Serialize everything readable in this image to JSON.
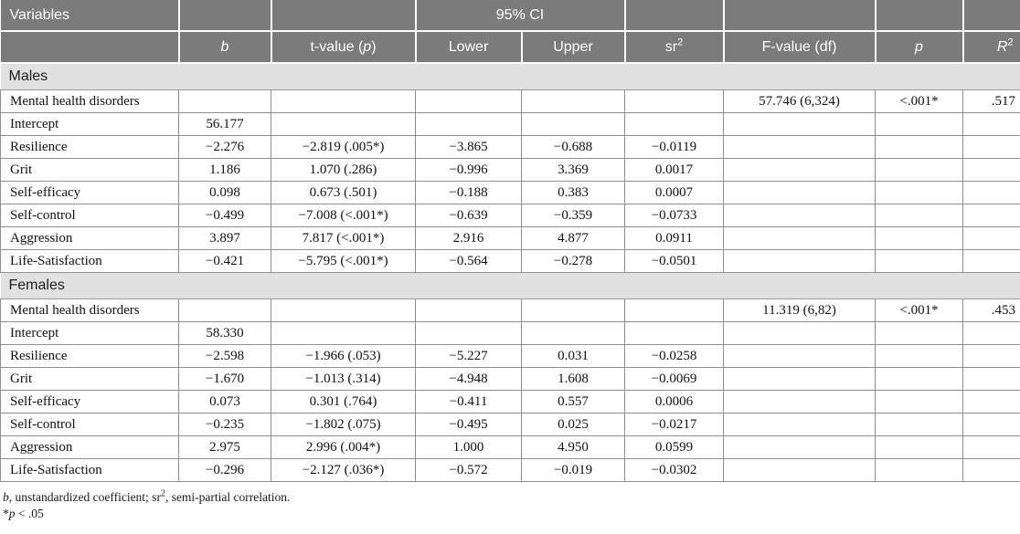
{
  "table": {
    "header": {
      "variables": "Variables",
      "ci": "95% CI",
      "b": "b",
      "t_prefix": "t-value (",
      "t_p": "p",
      "t_suffix": ")",
      "lower": "Lower",
      "upper": "Upper",
      "sr_base": "sr",
      "sr_sup": "2",
      "f": "F-value (df)",
      "p": "p",
      "r_base": "R",
      "r_sup": "2"
    },
    "sections": [
      {
        "label": "Males",
        "rows": [
          {
            "variable": "Mental health disorders",
            "b": "",
            "t": "",
            "lower": "",
            "upper": "",
            "sr2": "",
            "f": "57.746 (6,324)",
            "p": "<.001*",
            "r2": ".517"
          },
          {
            "variable": "Intercept",
            "b": "56.177",
            "t": "",
            "lower": "",
            "upper": "",
            "sr2": "",
            "f": "",
            "p": "",
            "r2": ""
          },
          {
            "variable": "Resilience",
            "b": "−2.276",
            "t": "−2.819 (.005*)",
            "lower": "−3.865",
            "upper": "−0.688",
            "sr2": "−0.0119",
            "f": "",
            "p": "",
            "r2": ""
          },
          {
            "variable": "Grit",
            "b": "1.186",
            "t": "1.070 (.286)",
            "lower": "−0.996",
            "upper": "3.369",
            "sr2": "0.0017",
            "f": "",
            "p": "",
            "r2": ""
          },
          {
            "variable": "Self-efficacy",
            "b": "0.098",
            "t": "0.673 (.501)",
            "lower": "−0.188",
            "upper": "0.383",
            "sr2": "0.0007",
            "f": "",
            "p": "",
            "r2": ""
          },
          {
            "variable": "Self-control",
            "b": "−0.499",
            "t": "−7.008 (<.001*)",
            "lower": "−0.639",
            "upper": "−0.359",
            "sr2": "−0.0733",
            "f": "",
            "p": "",
            "r2": ""
          },
          {
            "variable": "Aggression",
            "b": "3.897",
            "t": "7.817 (<.001*)",
            "lower": "2.916",
            "upper": "4.877",
            "sr2": "0.0911",
            "f": "",
            "p": "",
            "r2": ""
          },
          {
            "variable": "Life-Satisfaction",
            "b": "−0.421",
            "t": "−5.795 (<.001*)",
            "lower": "−0.564",
            "upper": "−0.278",
            "sr2": "−0.0501",
            "f": "",
            "p": "",
            "r2": ""
          }
        ]
      },
      {
        "label": "Females",
        "rows": [
          {
            "variable": "Mental health disorders",
            "b": "",
            "t": "",
            "lower": "",
            "upper": "",
            "sr2": "",
            "f": "11.319 (6,82)",
            "p": "<.001*",
            "r2": ".453"
          },
          {
            "variable": "Intercept",
            "b": "58.330",
            "t": "",
            "lower": "",
            "upper": "",
            "sr2": "",
            "f": "",
            "p": "",
            "r2": ""
          },
          {
            "variable": "Resilience",
            "b": "−2.598",
            "t": "−1.966 (.053)",
            "lower": "−5.227",
            "upper": "0.031",
            "sr2": "−0.0258",
            "f": "",
            "p": "",
            "r2": ""
          },
          {
            "variable": "Grit",
            "b": "−1.670",
            "t": "−1.013 (.314)",
            "lower": "−4.948",
            "upper": "1.608",
            "sr2": "−0.0069",
            "f": "",
            "p": "",
            "r2": ""
          },
          {
            "variable": "Self-efficacy",
            "b": "0.073",
            "t": "0.301 (.764)",
            "lower": "−0.411",
            "upper": "0.557",
            "sr2": "0.0006",
            "f": "",
            "p": "",
            "r2": ""
          },
          {
            "variable": "Self-control",
            "b": "−0.235",
            "t": "−1.802 (.075)",
            "lower": "−0.495",
            "upper": "0.025",
            "sr2": "−0.0217",
            "f": "",
            "p": "",
            "r2": ""
          },
          {
            "variable": "Aggression",
            "b": "2.975",
            "t": "2.996 (.004*)",
            "lower": "1.000",
            "upper": "4.950",
            "sr2": "0.0599",
            "f": "",
            "p": "",
            "r2": ""
          },
          {
            "variable": "Life-Satisfaction",
            "b": "−0.296",
            "t": "−2.127 (.036*)",
            "lower": "−0.572",
            "upper": "−0.019",
            "sr2": "−0.0302",
            "f": "",
            "p": "",
            "r2": ""
          }
        ]
      }
    ]
  },
  "footnotes": {
    "b_italic": "b",
    "def_mid": ", unstandardized coefficient; sr",
    "sr_sup": "2",
    "def_end": ", semi-partial correlation.",
    "star": "*",
    "p_italic": "p",
    "sig_rest": " < .05"
  },
  "colors": {
    "header_bg": "#7b7b7b",
    "section_bg": "#e1e1e1",
    "border": "#8f8f8f",
    "header_text": "#ffffff"
  }
}
